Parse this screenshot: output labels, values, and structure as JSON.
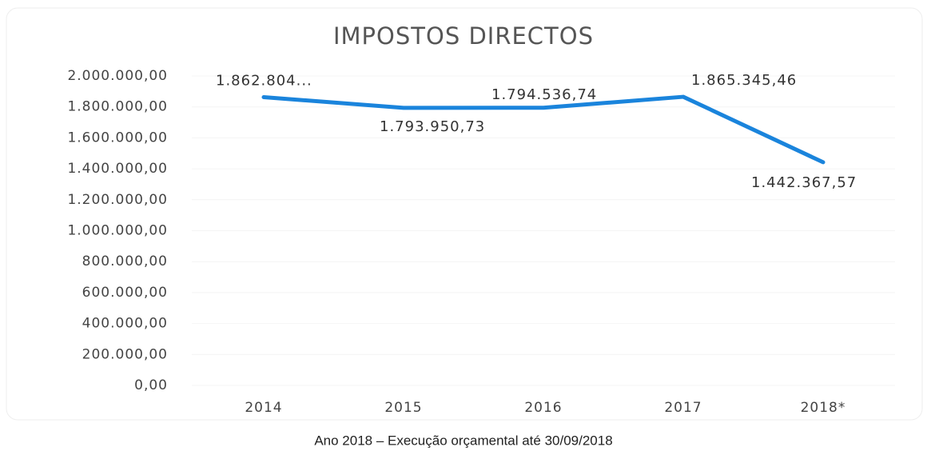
{
  "chart_data": {
    "type": "line",
    "title": "IMPOSTOS DIRECTOS",
    "categories": [
      "2014",
      "2015",
      "2016",
      "2017",
      "2018*"
    ],
    "series": [
      {
        "name": "Impostos directos",
        "color": "#1a84dc",
        "values": [
          1862804,
          1793950.73,
          1794536.74,
          1865345.46,
          1442367.57
        ],
        "value_labels": [
          "1.862.804...",
          "1.793.950,73",
          "1.794.536,74",
          "1.865.345,46",
          "1.442.367,57"
        ]
      }
    ],
    "ylim": [
      0,
      2000000
    ],
    "yticks": [
      {
        "value": 0,
        "label": "0,00"
      },
      {
        "value": 200000,
        "label": "200.000,00"
      },
      {
        "value": 400000,
        "label": "400.000,00"
      },
      {
        "value": 600000,
        "label": "600.000,00"
      },
      {
        "value": 800000,
        "label": "800.000,00"
      },
      {
        "value": 1000000,
        "label": "1.000.000,00"
      },
      {
        "value": 1200000,
        "label": "1.200.000,00"
      },
      {
        "value": 1400000,
        "label": "1.400.000,00"
      },
      {
        "value": 1600000,
        "label": "1.600.000,00"
      },
      {
        "value": 1800000,
        "label": "1.800.000,00"
      },
      {
        "value": 2000000,
        "label": "2.000.000,00"
      }
    ],
    "caption": "Ano 2018 – Execução orçamental até 30/09/2018"
  }
}
